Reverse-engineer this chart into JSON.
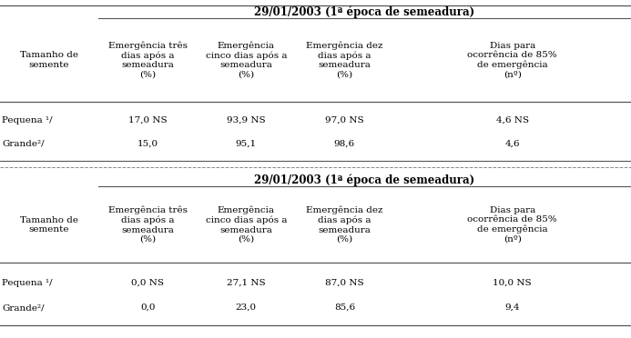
{
  "table_bg": "#ffffff",
  "header1_text": "29/01/2003 (1ª época de semeadura)",
  "header2_text": "29/01/2003 (1ª época de semeadura)",
  "col0_header": "Tamanho de\nsemente",
  "col_headers": [
    "Emergência três\ndias após a\nsemeadura\n(%)",
    "Emergência\ncinco dias após a\nsemeadura\n(%)",
    "Emergência dez\ndias após a\nsemeadura\n(%)",
    "Dias para\nocorrência de 85%\nde emergência\n(nº)"
  ],
  "table1_rows": [
    [
      "Pequena ¹/",
      "17,0 NS",
      "93,9 NS",
      "97,0 NS",
      "4,6 NS"
    ],
    [
      "Grande²/",
      "15,0",
      "95,1",
      "98,6",
      "4,6"
    ]
  ],
  "table2_rows": [
    [
      "Pequena ¹/",
      "0,0 NS",
      "27,1 NS",
      "87,0 NS",
      "10,0 NS"
    ],
    [
      "Grande²/",
      "0,0",
      "23,0",
      "85,6",
      "9,4"
    ]
  ],
  "col_boundaries": [
    0.0,
    0.156,
    0.312,
    0.468,
    0.624,
    1.0
  ],
  "fontsize": 7.5,
  "bold_fontsize": 8.5
}
